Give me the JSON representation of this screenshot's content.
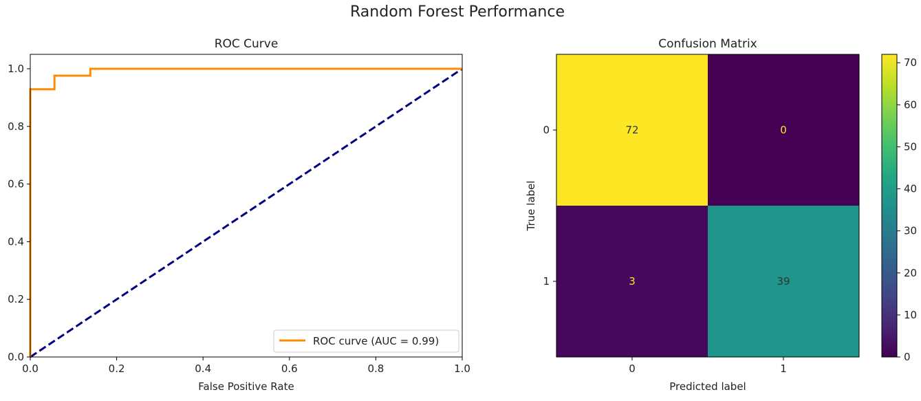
{
  "figure": {
    "suptitle": "Random Forest Performance"
  },
  "chart_data": [
    {
      "type": "line",
      "title": "ROC Curve",
      "xlabel": "False Positive Rate",
      "ylabel": "",
      "xlim": [
        0.0,
        1.0
      ],
      "ylim": [
        0.0,
        1.05
      ],
      "xticks": [
        "0.0",
        "0.2",
        "0.4",
        "0.6",
        "0.8",
        "1.0"
      ],
      "yticks": [
        "0.0",
        "0.2",
        "0.4",
        "0.6",
        "0.8",
        "1.0"
      ],
      "grid": false,
      "legend_position": "lower-right",
      "series": [
        {
          "name": "ROC curve (AUC = 0.99)",
          "color": "#ff8c00",
          "style": "solid",
          "x": [
            0.0,
            0.0,
            0.0,
            0.056,
            0.056,
            0.139,
            0.139,
            1.0
          ],
          "y": [
            0.0,
            0.0,
            0.929,
            0.929,
            0.976,
            0.976,
            1.0,
            1.0
          ]
        },
        {
          "name": "",
          "color": "#000080",
          "style": "dashed",
          "x": [
            0.0,
            1.0
          ],
          "y": [
            0.0,
            1.0
          ]
        }
      ]
    },
    {
      "type": "heatmap",
      "title": "Confusion Matrix",
      "xlabel": "Predicted label",
      "ylabel": "True label",
      "xticklabels": [
        "0",
        "1"
      ],
      "yticklabels": [
        "0",
        "1"
      ],
      "values": [
        [
          72,
          0
        ],
        [
          3,
          39
        ]
      ],
      "colormap": "viridis",
      "colorbar_ticks": [
        "0",
        "10",
        "20",
        "30",
        "40",
        "50",
        "60",
        "70"
      ],
      "colorbar_range": [
        0,
        72
      ],
      "cell_colors": [
        [
          "#fde725",
          "#440154"
        ],
        [
          "#46085c",
          "#20958b"
        ]
      ],
      "annotation_colors": [
        [
          "#333333",
          "#fde725"
        ],
        [
          "#fde725",
          "#333333"
        ]
      ]
    }
  ]
}
